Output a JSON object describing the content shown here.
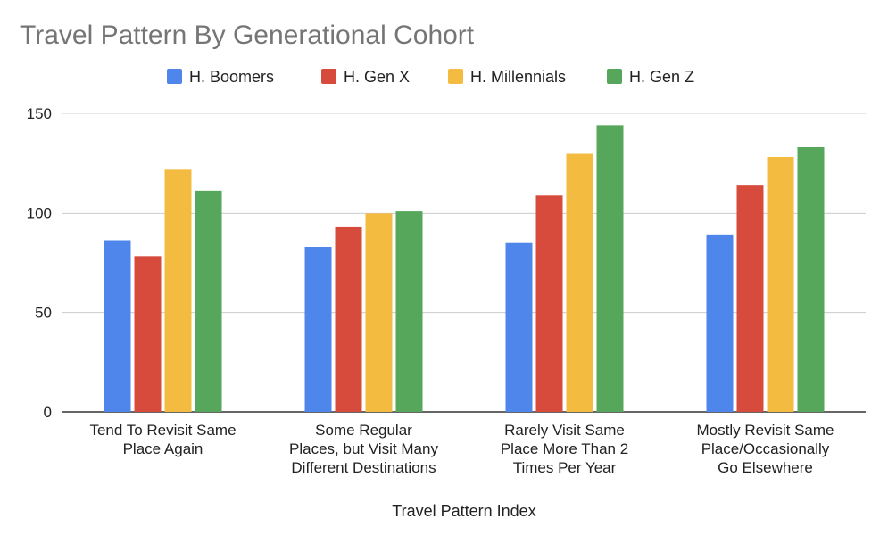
{
  "chart_data": {
    "type": "bar",
    "title": "Travel Pattern By Generational Cohort",
    "xlabel": "Travel Pattern Index",
    "ylabel": "",
    "ylim": [
      0,
      150
    ],
    "yticks": [
      "0",
      "50",
      "100",
      "150"
    ],
    "grid": true,
    "legend": "top",
    "categories": [
      [
        "Tend To Revisit Same",
        "Place Again"
      ],
      [
        "Some Regular",
        "Places, but Visit Many",
        "Different Destinations"
      ],
      [
        "Rarely Visit Same",
        "Place More Than 2",
        "Times Per Year"
      ],
      [
        "Mostly Revisit Same",
        "Place/Occasionally",
        "Go Elsewhere"
      ]
    ],
    "series": [
      {
        "name": "H. Boomers",
        "color": "#4e86ec",
        "values": [
          86,
          83,
          85,
          89
        ]
      },
      {
        "name": "H. Gen X",
        "color": "#d64b3b",
        "values": [
          78,
          93,
          109,
          114
        ]
      },
      {
        "name": "H. Millennials",
        "color": "#f4bb41",
        "values": [
          122,
          100,
          130,
          128
        ]
      },
      {
        "name": "H. Gen Z",
        "color": "#56a75b",
        "values": [
          111,
          101,
          144,
          133
        ]
      }
    ]
  }
}
